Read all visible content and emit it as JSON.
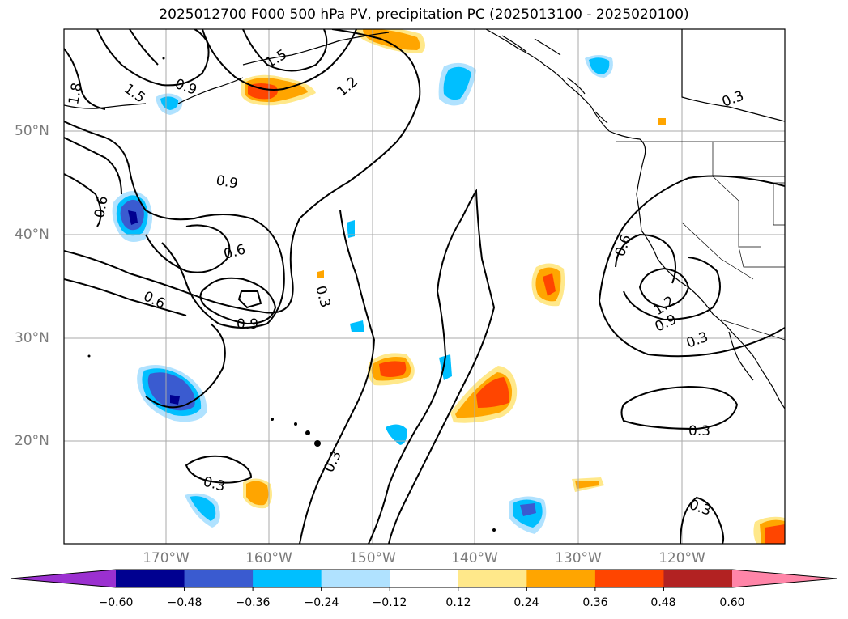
{
  "title": "2025012700 F000 500 hPa PV, precipitation PC (2025013100 - 2025020100)",
  "lat_labels": [
    "50°N",
    "40°N",
    "30°N",
    "20°N"
  ],
  "lon_labels": [
    "170°W",
    "160°W",
    "150°W",
    "140°W",
    "130°W",
    "120°W"
  ],
  "contour_labels": [
    "1.8",
    "1.5",
    "0.9",
    "1.2",
    "1.5",
    "0.9",
    "0.6",
    "0.6",
    "0.6",
    "0.9",
    "0.3",
    "0.3",
    "0.6",
    "0.9",
    "1.2",
    "0.3",
    "0.3",
    "0.3",
    "0.3",
    "0.3"
  ],
  "colorbar": {
    "ticks": [
      "−0.60",
      "−0.48",
      "−0.36",
      "−0.24",
      "−0.12",
      "0.12",
      "0.24",
      "0.36",
      "0.48",
      "0.60"
    ],
    "colors": [
      "#9b30d0",
      "#000090",
      "#3a5bd0",
      "#00bfff",
      "#b0e2ff",
      "#ffffff",
      "#ffe88a",
      "#ffa500",
      "#ff4500",
      "#b22222",
      "#ff85a8"
    ]
  }
}
